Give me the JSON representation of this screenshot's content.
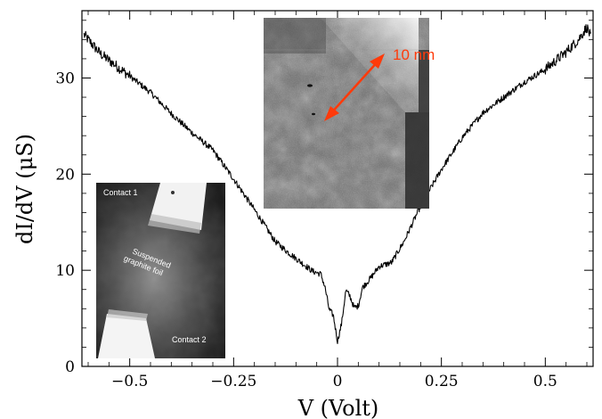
{
  "chart_data": {
    "type": "line",
    "title": "",
    "xlabel": "V (Volt)",
    "ylabel": "dI/dV (μS)",
    "xlim": [
      -0.615,
      0.615
    ],
    "ylim": [
      0,
      37
    ],
    "x_ticks": [
      -0.5,
      -0.25,
      0,
      0.25,
      0.5
    ],
    "x_tick_labels": [
      "−0.5",
      "−0.25",
      "0",
      "0.25",
      "0.5"
    ],
    "y_ticks": [
      0,
      10,
      20,
      30
    ],
    "y_tick_labels": [
      "0",
      "10",
      "20",
      "30"
    ],
    "grid": false,
    "legend": "none",
    "series": [
      {
        "color": "#000000",
        "x": [
          -0.61,
          -0.57,
          -0.5,
          -0.45,
          -0.4,
          -0.35,
          -0.3,
          -0.25,
          -0.2,
          -0.15,
          -0.12,
          -0.09,
          -0.06,
          -0.04,
          -0.03,
          -0.02,
          -0.01,
          0.0,
          0.01,
          0.02,
          0.03,
          0.04,
          0.05,
          0.06,
          0.08,
          0.1,
          0.13,
          0.16,
          0.2,
          0.25,
          0.3,
          0.35,
          0.4,
          0.45,
          0.5,
          0.55,
          0.58,
          0.6,
          0.61
        ],
        "y": [
          34.5,
          32.5,
          30.2,
          28.5,
          26.3,
          24.3,
          22.5,
          19.5,
          16.3,
          13.0,
          11.9,
          10.9,
          9.9,
          9.6,
          8.2,
          5.9,
          5.3,
          2.6,
          4.5,
          7.9,
          7.3,
          6.1,
          6.3,
          8.2,
          9.2,
          10.4,
          10.8,
          13.0,
          16.7,
          20.5,
          23.8,
          26.4,
          28.0,
          29.6,
          30.9,
          32.7,
          34.0,
          35.3,
          34.2
        ]
      }
    ]
  },
  "insets": {
    "sample_micrograph": {
      "contact_top_label": "Contact 1",
      "contact_bottom_label": "Contact 2",
      "foil_label_line1": "Suspended",
      "foil_label_line2": "graphite foil"
    },
    "lattice_micrograph": {
      "scale_bar_label": "10 nm",
      "scale_bar_color": "#ff3a0a"
    }
  }
}
